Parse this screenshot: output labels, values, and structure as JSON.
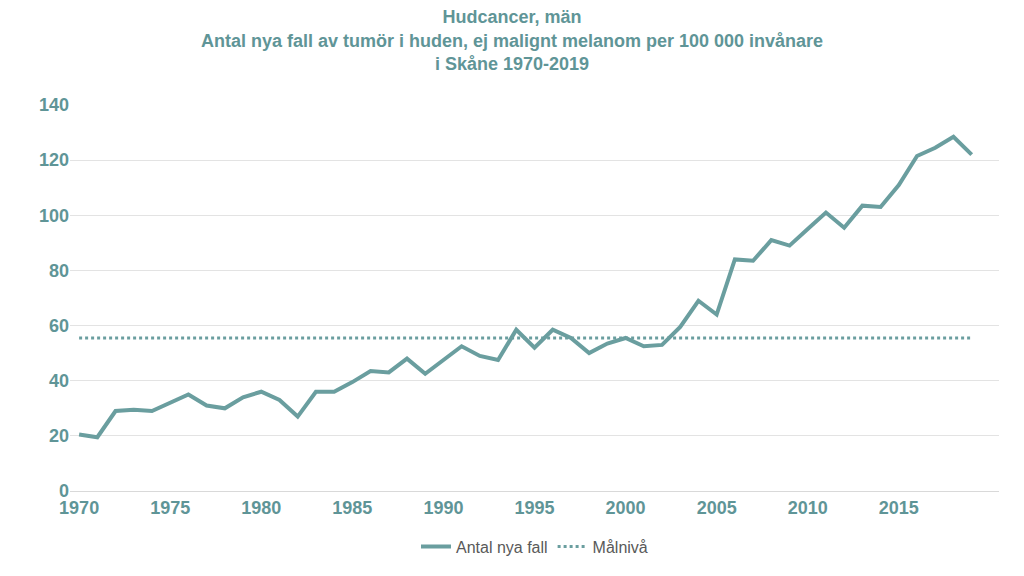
{
  "chart_data": {
    "type": "line",
    "title": "Hudcancer, män\nAntal nya fall av tumör i huden, ej malignt melanom per 100 000 invånare\ni Skåne 1970-2019",
    "x": [
      1970,
      1971,
      1972,
      1973,
      1974,
      1975,
      1976,
      1977,
      1978,
      1979,
      1980,
      1981,
      1982,
      1983,
      1984,
      1985,
      1986,
      1987,
      1988,
      1989,
      1990,
      1991,
      1992,
      1993,
      1994,
      1995,
      1996,
      1997,
      1998,
      1999,
      2000,
      2001,
      2002,
      2003,
      2004,
      2005,
      2006,
      2007,
      2008,
      2009,
      2010,
      2011,
      2012,
      2013,
      2014,
      2015,
      2016,
      2017,
      2018,
      2019
    ],
    "series": [
      {
        "name": "Antal nya fall",
        "color": "#6a9e9f",
        "line_style": "solid",
        "values": [
          20.5,
          19.5,
          29,
          29.5,
          29,
          32,
          35,
          31,
          30,
          34,
          36,
          33,
          27,
          36,
          36,
          39.5,
          43.5,
          43,
          48,
          42.5,
          47.5,
          52.5,
          49,
          47.5,
          58.5,
          52,
          58.5,
          55.5,
          50,
          53.5,
          55.5,
          52.5,
          53,
          59.5,
          69,
          64,
          84,
          83.5,
          91,
          89,
          95,
          101,
          95.5,
          103.5,
          103,
          111,
          121.5,
          124.5,
          128.5,
          122
        ]
      },
      {
        "name": "Målnivå",
        "color": "#6a9e9f",
        "line_style": "dotted",
        "values": [
          55.5,
          55.5,
          55.5,
          55.5,
          55.5,
          55.5,
          55.5,
          55.5,
          55.5,
          55.5,
          55.5,
          55.5,
          55.5,
          55.5,
          55.5,
          55.5,
          55.5,
          55.5,
          55.5,
          55.5,
          55.5,
          55.5,
          55.5,
          55.5,
          55.5,
          55.5,
          55.5,
          55.5,
          55.5,
          55.5,
          55.5,
          55.5,
          55.5,
          55.5,
          55.5,
          55.5,
          55.5,
          55.5,
          55.5,
          55.5,
          55.5,
          55.5,
          55.5,
          55.5,
          55.5,
          55.5,
          55.5,
          55.5,
          55.5,
          55.5
        ]
      }
    ],
    "xlim": [
      1969.5,
      2020.5
    ],
    "xticks": [
      1970,
      1975,
      1980,
      1985,
      1990,
      1995,
      2000,
      2005,
      2010,
      2015
    ],
    "ylim": [
      0,
      140
    ],
    "yticks": [
      0,
      20,
      40,
      60,
      80,
      100,
      120,
      140
    ],
    "grid": true,
    "legend": "bottom"
  }
}
